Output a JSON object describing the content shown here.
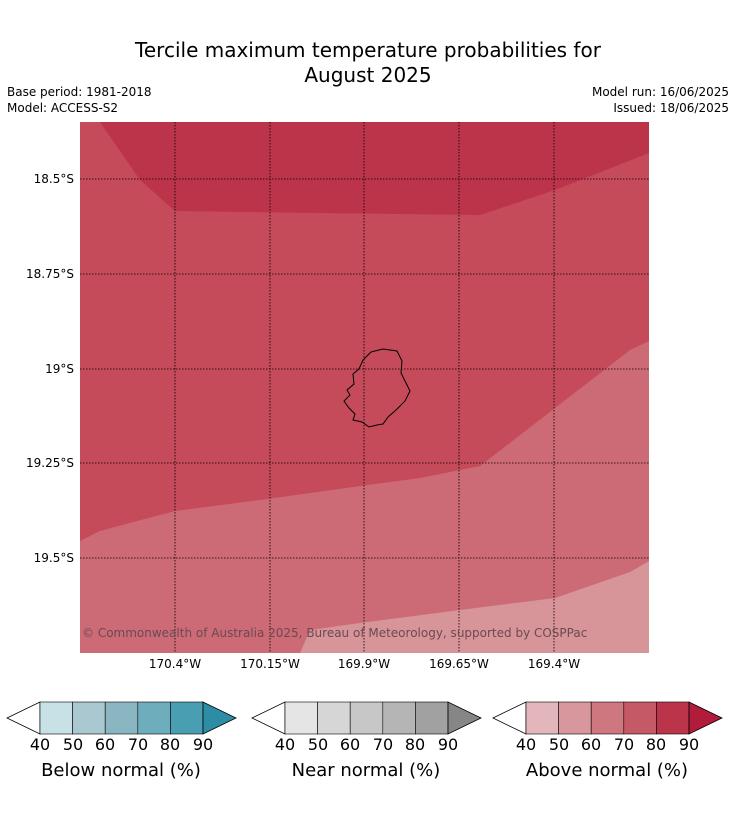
{
  "title_line1": "Tercile maximum temperature probabilities for",
  "title_line2": "August 2025",
  "meta_left": {
    "base_period": "Base period: 1981-2018",
    "model": "Model: ACCESS-S2"
  },
  "meta_right": {
    "model_run": "Model run: 16/06/2025",
    "issued": "Issued: 18/06/2025"
  },
  "map": {
    "lat_labels": [
      "18.5°S",
      "18.75°S",
      "19°S",
      "19.25°S",
      "19.5°S"
    ],
    "lon_labels": [
      "170.4°W",
      "170.15°W",
      "169.9°W",
      "169.65°W",
      "169.4°W"
    ],
    "copyright": "© Commonwealth of Australia 2025, Bureau of Meteorology, supported by COSPPac",
    "colors": {
      "above_80": "#bc344a",
      "above_70": "#c54a5a",
      "above_60": "#cc6a75",
      "above_50": "#d79499"
    }
  },
  "colorbars": [
    {
      "label": "Below normal (%)",
      "ticks": [
        "40",
        "50",
        "60",
        "70",
        "80",
        "90"
      ],
      "colors": [
        "#c7e1e7",
        "#a9c8cf",
        "#8ab6c2",
        "#6eadbb",
        "#499fb1",
        "#2d8da4"
      ]
    },
    {
      "label": "Near normal (%)",
      "ticks": [
        "40",
        "50",
        "60",
        "70",
        "80",
        "90"
      ],
      "colors": [
        "#e5e5e5",
        "#d6d6d6",
        "#c7c7c7",
        "#b5b5b5",
        "#a1a1a1",
        "#868686"
      ]
    },
    {
      "label": "Above normal (%)",
      "ticks": [
        "40",
        "50",
        "60",
        "70",
        "80",
        "90"
      ],
      "colors": [
        "#e2b6ba",
        "#d7979c",
        "#cf777e",
        "#c55a66",
        "#bc344a",
        "#b01c3a"
      ]
    }
  ]
}
